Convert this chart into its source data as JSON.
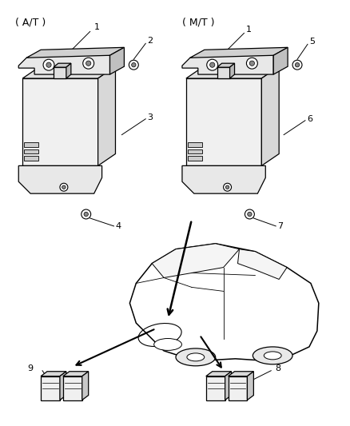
{
  "background_color": "#ffffff",
  "line_color": "#000000",
  "text_color": "#000000",
  "figsize": [
    4.38,
    5.33
  ],
  "dpi": 100,
  "labels": {
    "at_label": "( A/T )",
    "mt_label": "( M/T )"
  }
}
